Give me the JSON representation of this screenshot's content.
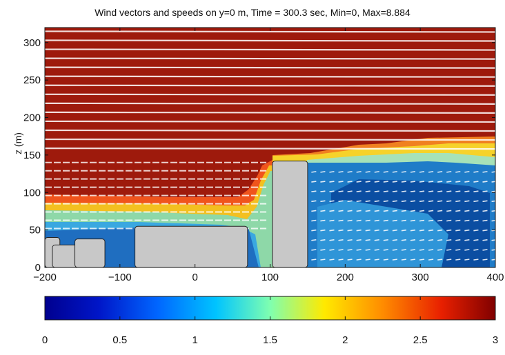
{
  "chart_data": [
    {
      "type": "heatmap",
      "title": "Wind vectors and speeds on y=0 m, Time = 300.3 sec,  Min=0, Max=8.884",
      "xlabel": "",
      "ylabel": "z (m)",
      "xlim": [
        -200,
        400
      ],
      "ylim": [
        0,
        320
      ],
      "x_ticks": [
        "−200",
        "−100",
        "0",
        "100",
        "200",
        "300",
        "400"
      ],
      "y_ticks": [
        "0",
        "50",
        "100",
        "150",
        "200",
        "250",
        "300"
      ],
      "x_tick_values": [
        -200,
        -100,
        0,
        100,
        200,
        300,
        400
      ],
      "y_tick_values": [
        0,
        50,
        100,
        150,
        200,
        250,
        300
      ],
      "buildings": [
        {
          "x0": -200,
          "x1": -180,
          "height": 40
        },
        {
          "x0": -190,
          "x1": -155,
          "height": 30
        },
        {
          "x0": -160,
          "x1": -120,
          "height": 38
        },
        {
          "x0": -80,
          "x1": 70,
          "height": 55
        },
        {
          "x0": 103,
          "x1": 150,
          "height": 142
        }
      ],
      "colormap": "jet",
      "grid": false
    },
    {
      "type": "heatmap",
      "title": "",
      "xlabel": "",
      "ylabel": "",
      "colorbar_ticks": [
        "0",
        "0.5",
        "1",
        "1.5",
        "2",
        "2.5",
        "3"
      ],
      "colorbar_tick_values": [
        0,
        0.5,
        1,
        1.5,
        2,
        2.5,
        3
      ],
      "clim": [
        0,
        3
      ]
    }
  ]
}
